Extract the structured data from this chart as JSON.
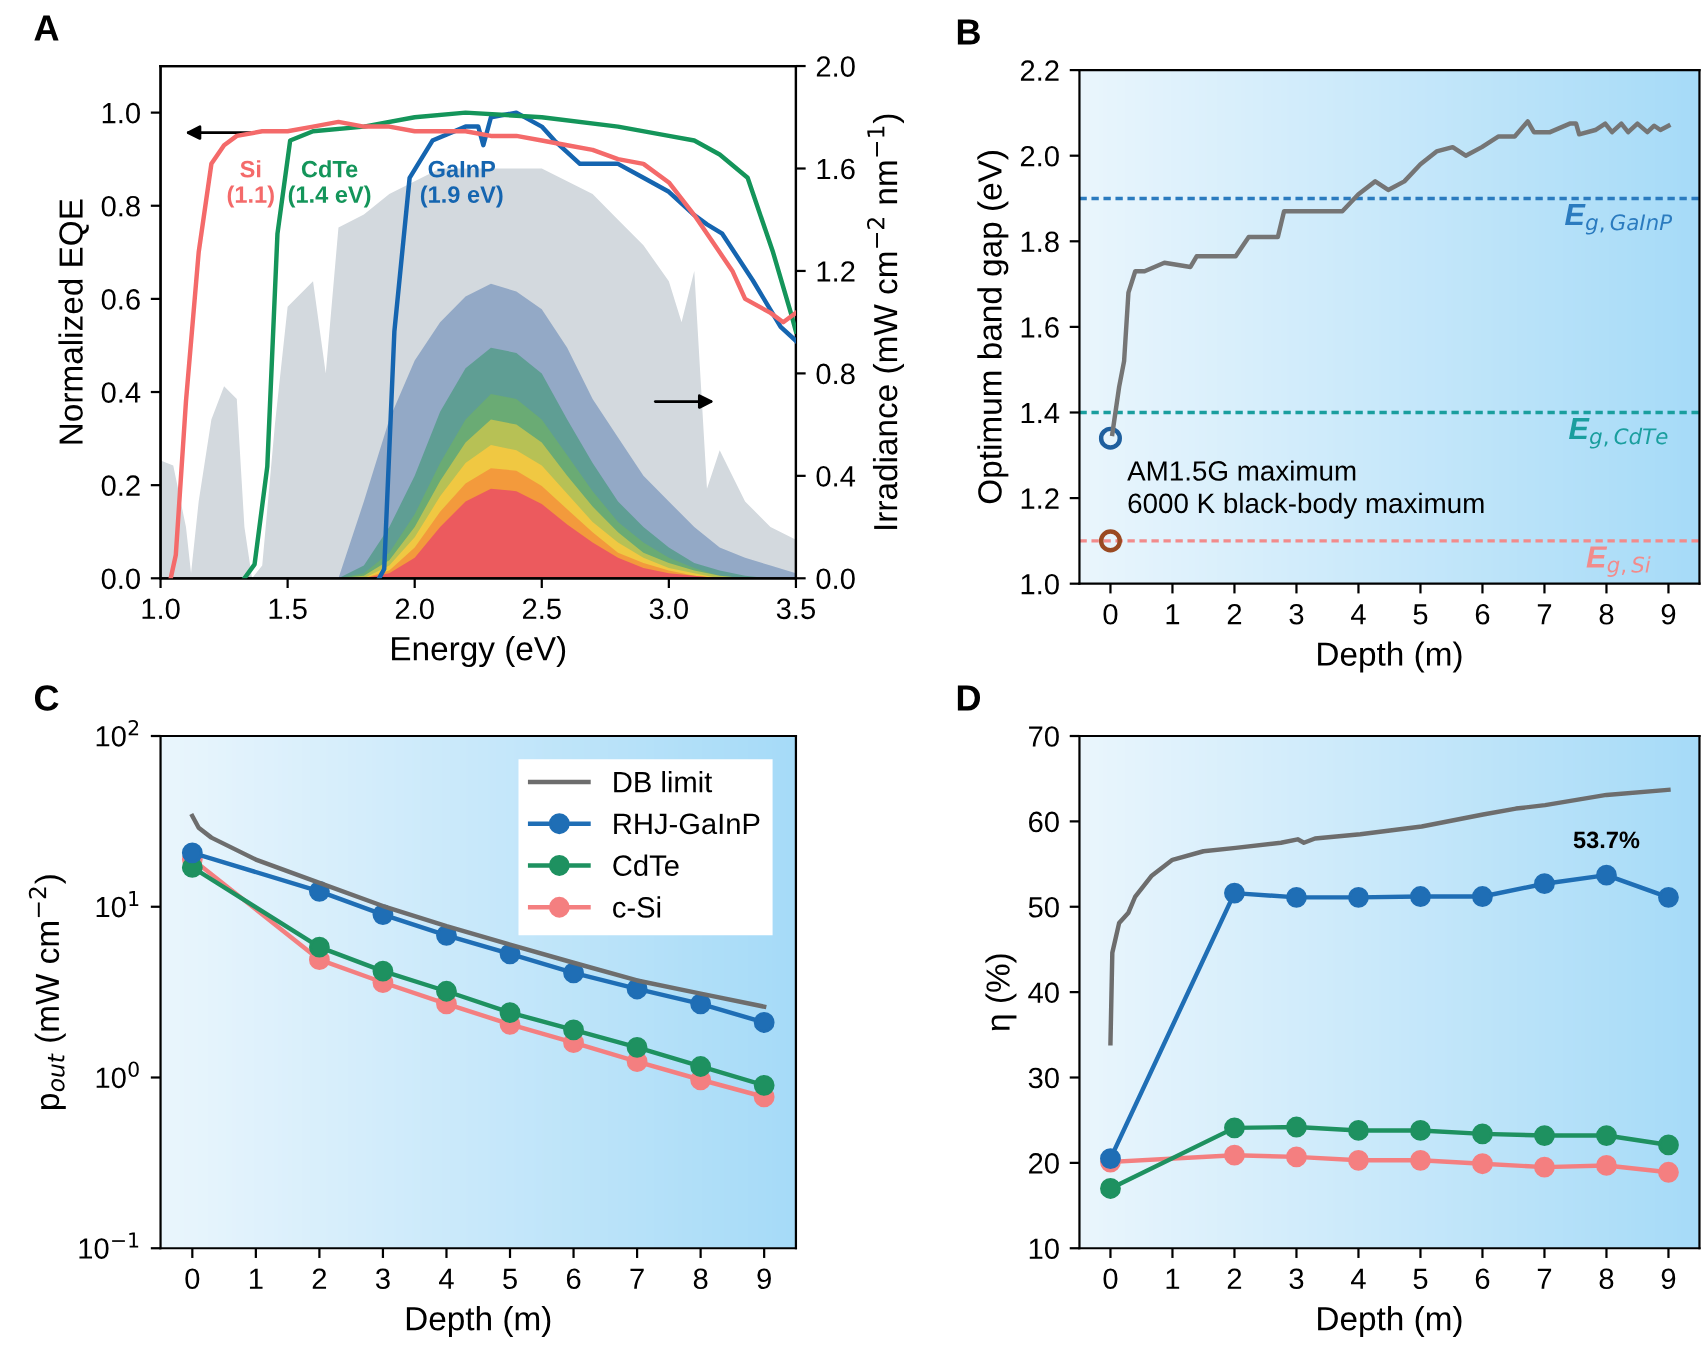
{
  "chart_data": [
    {
      "type": "line",
      "title": "A",
      "xlabel": "Energy (eV)",
      "ylabel": "Normalized EQE",
      "y2label": "Irradiance (mW cm$^{−2}$ nm$^{−1}$)",
      "xlim": [
        1.0,
        3.5
      ],
      "xticks": [
        {
          "value": 1,
          "label": "1.0"
        },
        1.5,
        {
          "value": 2,
          "label": "2.0"
        },
        2.5,
        {
          "value": 3,
          "label": "3.0"
        },
        3.5
      ],
      "ylim": [
        0.0,
        1.1
      ],
      "yticks": [
        {
          "value": 0,
          "label": "0.0"
        },
        0.2,
        0.4,
        0.6,
        0.8,
        {
          "value": 1,
          "label": "1.0"
        }
      ],
      "y2lim": [
        0.0,
        2.0
      ],
      "y2ticks": [
        {
          "value": 0,
          "label": "0.0"
        },
        0.4,
        0.8,
        1.2,
        1.6,
        {
          "value": 2,
          "label": "2.0"
        }
      ],
      "series": [
        {
          "type": "area",
          "axis": "y2",
          "color": "#d3d9de",
          "x": [
            1.0,
            1.05,
            1.1,
            1.12,
            1.15,
            1.2,
            1.25,
            1.3,
            1.33,
            1.36,
            1.4,
            1.45,
            1.5,
            1.6,
            1.65,
            1.7,
            1.8,
            1.9,
            2.0,
            2.1,
            2.2,
            2.3,
            2.4,
            2.5,
            2.6,
            2.7,
            2.8,
            2.9,
            3.0,
            3.05,
            3.1,
            3.15,
            3.2,
            3.3,
            3.4,
            3.5
          ],
          "values": [
            0.46,
            0.44,
            0.2,
            0.02,
            0.3,
            0.62,
            0.75,
            0.7,
            0.2,
            0.0,
            0.05,
            0.6,
            1.06,
            1.16,
            0.8,
            1.37,
            1.42,
            1.5,
            1.55,
            1.6,
            1.6,
            1.6,
            1.6,
            1.6,
            1.55,
            1.5,
            1.4,
            1.3,
            1.16,
            1.0,
            1.2,
            0.35,
            0.5,
            0.3,
            0.2,
            0.15
          ]
        },
        {
          "type": "area",
          "axis": "y2",
          "color": "#93a9c6",
          "x": [
            1.7,
            1.8,
            1.9,
            2.0,
            2.1,
            2.2,
            2.3,
            2.4,
            2.5,
            2.6,
            2.7,
            2.8,
            2.9,
            3.0,
            3.1,
            3.2,
            3.3,
            3.4,
            3.5
          ],
          "values": [
            0,
            0.3,
            0.62,
            0.85,
            1.0,
            1.1,
            1.15,
            1.12,
            1.05,
            0.9,
            0.7,
            0.55,
            0.4,
            0.3,
            0.2,
            0.12,
            0.08,
            0.05,
            0.02
          ]
        },
        {
          "type": "area",
          "axis": "y2",
          "color": "#5f9e94",
          "x": [
            1.7,
            1.8,
            1.9,
            2.0,
            2.1,
            2.2,
            2.3,
            2.4,
            2.5,
            2.6,
            2.7,
            2.8,
            2.9,
            3.0,
            3.1,
            3.2,
            3.3,
            3.4,
            3.5
          ],
          "values": [
            0,
            0.05,
            0.2,
            0.4,
            0.65,
            0.82,
            0.9,
            0.88,
            0.8,
            0.62,
            0.45,
            0.3,
            0.2,
            0.12,
            0.06,
            0.03,
            0.01,
            0,
            0
          ]
        },
        {
          "type": "area",
          "axis": "y2",
          "color": "#6aab74",
          "x": [
            1.7,
            1.8,
            1.9,
            2.0,
            2.1,
            2.2,
            2.3,
            2.4,
            2.5,
            2.6,
            2.7,
            2.8,
            2.9,
            3.0,
            3.1,
            3.2,
            3.3,
            3.4,
            3.5
          ],
          "values": [
            0,
            0.02,
            0.1,
            0.25,
            0.45,
            0.62,
            0.72,
            0.7,
            0.62,
            0.48,
            0.34,
            0.22,
            0.14,
            0.08,
            0.04,
            0.01,
            0,
            0,
            0
          ]
        },
        {
          "type": "area",
          "axis": "y2",
          "color": "#b7c155",
          "x": [
            1.7,
            1.8,
            1.9,
            2.0,
            2.1,
            2.2,
            2.3,
            2.4,
            2.5,
            2.6,
            2.7,
            2.8,
            2.9,
            3.0,
            3.1,
            3.2,
            3.3,
            3.4,
            3.5
          ],
          "values": [
            0,
            0.01,
            0.07,
            0.2,
            0.38,
            0.53,
            0.62,
            0.6,
            0.53,
            0.4,
            0.28,
            0.18,
            0.1,
            0.06,
            0.03,
            0.01,
            0,
            0,
            0
          ]
        },
        {
          "type": "area",
          "axis": "y2",
          "color": "#f0c842",
          "x": [
            1.7,
            1.8,
            1.9,
            2.0,
            2.1,
            2.2,
            2.3,
            2.4,
            2.5,
            2.6,
            2.7,
            2.8,
            2.9,
            3.0,
            3.1,
            3.2,
            3.3,
            3.4,
            3.5
          ],
          "values": [
            0,
            0,
            0.05,
            0.16,
            0.32,
            0.45,
            0.52,
            0.5,
            0.44,
            0.33,
            0.22,
            0.14,
            0.08,
            0.04,
            0.02,
            0,
            0,
            0,
            0
          ]
        },
        {
          "type": "area",
          "axis": "y2",
          "color": "#f39a3c",
          "x": [
            1.7,
            1.8,
            1.9,
            2.0,
            2.1,
            2.2,
            2.3,
            2.4,
            2.5,
            2.6,
            2.7,
            2.8,
            2.9,
            3.0,
            3.1,
            3.2,
            3.3,
            3.4,
            3.5
          ],
          "values": [
            0,
            0,
            0.03,
            0.12,
            0.26,
            0.37,
            0.43,
            0.42,
            0.36,
            0.27,
            0.18,
            0.1,
            0.06,
            0.03,
            0.01,
            0,
            0,
            0,
            0
          ]
        },
        {
          "type": "area",
          "axis": "y2",
          "color": "#ec5a5e",
          "x": [
            1.7,
            1.8,
            1.9,
            2.0,
            2.1,
            2.2,
            2.3,
            2.4,
            2.5,
            2.6,
            2.7,
            2.8,
            2.9,
            3.0,
            3.1,
            3.2,
            3.3,
            3.4,
            3.5
          ],
          "values": [
            0,
            0,
            0.02,
            0.08,
            0.2,
            0.3,
            0.35,
            0.34,
            0.29,
            0.21,
            0.14,
            0.08,
            0.04,
            0.02,
            0.01,
            0,
            0,
            0,
            0
          ]
        },
        {
          "type": "line",
          "name": "Si\n(1.1)",
          "color": "#f46a6a",
          "x": [
            1.04,
            1.06,
            1.1,
            1.15,
            1.2,
            1.25,
            1.3,
            1.4,
            1.5,
            1.6,
            1.7,
            1.8,
            1.9,
            2.0,
            2.1,
            2.2,
            2.3,
            2.4,
            2.5,
            2.6,
            2.7,
            2.8,
            2.9,
            3.0,
            3.1,
            3.2,
            3.25,
            3.3,
            3.4,
            3.45,
            3.5
          ],
          "values": [
            0,
            0.05,
            0.38,
            0.7,
            0.89,
            0.93,
            0.95,
            0.96,
            0.96,
            0.97,
            0.98,
            0.97,
            0.97,
            0.96,
            0.96,
            0.96,
            0.95,
            0.95,
            0.94,
            0.93,
            0.92,
            0.9,
            0.89,
            0.85,
            0.78,
            0.7,
            0.66,
            0.6,
            0.57,
            0.55,
            0.57
          ]
        },
        {
          "type": "line",
          "name": "CdTe\n(1.4 eV)",
          "color": "#14955a",
          "x": [
            1.33,
            1.37,
            1.42,
            1.46,
            1.51,
            1.6,
            1.8,
            2.0,
            2.2,
            2.5,
            2.8,
            3.0,
            3.1,
            3.2,
            3.31,
            3.41,
            3.48,
            3.5
          ],
          "values": [
            0,
            0.03,
            0.24,
            0.74,
            0.94,
            0.96,
            0.97,
            0.99,
            1.0,
            0.99,
            0.97,
            0.95,
            0.94,
            0.91,
            0.86,
            0.7,
            0.57,
            0.53
          ]
        },
        {
          "type": "line",
          "name": "GaInP\n(1.9 eV)",
          "color": "#1565b0",
          "x": [
            1.86,
            1.88,
            1.92,
            1.98,
            2.07,
            2.2,
            2.25,
            2.27,
            2.3,
            2.4,
            2.5,
            2.55,
            2.65,
            2.8,
            2.9,
            3.0,
            3.1,
            3.15,
            3.21,
            3.33,
            3.44,
            3.5
          ],
          "values": [
            0,
            0.02,
            0.53,
            0.86,
            0.94,
            0.97,
            0.97,
            0.93,
            0.99,
            1.0,
            0.97,
            0.94,
            0.89,
            0.89,
            0.86,
            0.83,
            0.78,
            0.76,
            0.74,
            0.64,
            0.54,
            0.51
          ]
        }
      ]
    },
    {
      "type": "line",
      "title": "B",
      "xlabel": "Depth (m)",
      "ylabel": "Optimum band gap (eV)",
      "xlim": [
        -0.5,
        9.5
      ],
      "xticks": [
        0,
        1,
        2,
        3,
        4,
        5,
        6,
        7,
        8,
        9
      ],
      "ylim": [
        1.0,
        2.2
      ],
      "yticks": [
        {
          "value": 1,
          "label": "1.0"
        },
        1.2,
        1.4,
        1.6,
        1.8,
        {
          "value": 2,
          "label": "2.0"
        },
        2.2
      ],
      "ref_lines": [
        {
          "axis": "y",
          "value": 1.9,
          "label": "E$_{g,GaInP}$",
          "color": "#2b7bbf",
          "line_style": "dashed"
        },
        {
          "axis": "y",
          "value": 1.4,
          "label": "E$_{g,CdTe}$",
          "color": "#1a9e9e",
          "line_style": "dashed"
        },
        {
          "axis": "y",
          "value": 1.1,
          "label": "E$_{g,Si}$",
          "color": "#f28b8b",
          "line_style": "dashed"
        }
      ],
      "annotations": [
        {
          "text": "AM1.5G maximum",
          "x": 0,
          "y": 1.34
        },
        {
          "text": "6000 K black-body maximum",
          "x": 0,
          "y": 1.1
        }
      ],
      "series": [
        {
          "type": "line",
          "color": "#757575",
          "x": [
            0.03,
            0.14,
            0.22,
            0.29,
            0.4,
            0.55,
            0.87,
            1.29,
            1.39,
            2.02,
            2.23,
            2.7,
            2.8,
            3.17,
            3.74,
            4.0,
            4.27,
            4.48,
            4.74,
            5.0,
            5.26,
            5.52,
            5.73,
            5.99,
            6.26,
            6.52,
            6.73,
            6.83,
            7.09,
            7.41,
            7.51,
            7.56,
            7.82,
            7.98,
            8.09,
            8.24,
            8.35,
            8.5,
            8.66,
            8.77,
            8.87,
            9.0
          ],
          "values": [
            1.35,
            1.46,
            1.52,
            1.68,
            1.73,
            1.73,
            1.75,
            1.74,
            1.765,
            1.765,
            1.81,
            1.81,
            1.87,
            1.87,
            1.87,
            1.91,
            1.94,
            1.92,
            1.94,
            1.98,
            2.01,
            2.02,
            2.0,
            2.02,
            2.045,
            2.045,
            2.08,
            2.055,
            2.055,
            2.075,
            2.075,
            2.05,
            2.06,
            2.075,
            2.055,
            2.075,
            2.055,
            2.075,
            2.055,
            2.07,
            2.06,
            2.07
          ]
        },
        {
          "type": "scatter",
          "marker": "circle",
          "color": "#1f5f9e",
          "x": [
            0
          ],
          "values": [
            1.34
          ]
        },
        {
          "type": "scatter",
          "marker": "circle",
          "color": "#9a4a22",
          "x": [
            0
          ],
          "values": [
            1.1
          ]
        }
      ]
    },
    {
      "type": "line",
      "title": "C",
      "xlabel": "Depth (m)",
      "ylabel": "p$_{out}$ (mW cm$^{−2}$)",
      "log": "y",
      "xlim": [
        -0.5,
        9.5
      ],
      "xticks": [
        0,
        1,
        2,
        3,
        4,
        5,
        6,
        7,
        8,
        9
      ],
      "ylim": [
        0.1,
        100
      ],
      "yticks": [
        {
          "value": 0.1,
          "label": "10$^{−1}$"
        },
        {
          "value": 1,
          "label": "10$^{0}$"
        },
        {
          "value": 10,
          "label": "10$^{1}$"
        },
        {
          "value": 100,
          "label": "10$^{2}$"
        }
      ],
      "legend": "top right",
      "marker": "circle",
      "x": [
        0,
        2,
        3,
        4,
        5,
        6,
        7,
        8,
        9
      ],
      "series": [
        {
          "name": "DB limit",
          "color": "#6d6d6d",
          "marker": "none",
          "x": [
            0,
            0.1,
            0.3,
            1,
            2,
            3,
            4,
            5,
            6,
            7,
            8,
            9
          ],
          "values": [
            34,
            29,
            25.4,
            18.9,
            13.8,
            10.1,
            7.7,
            6.0,
            4.7,
            3.7,
            3.1,
            2.6
          ]
        },
        {
          "name": "RHJ-GaInP",
          "color": "#1f6eb5",
          "values": [
            20.7,
            12.3,
            9.0,
            6.8,
            5.3,
            4.1,
            3.3,
            2.7,
            2.1
          ]
        },
        {
          "name": "CdTe",
          "color": "#1e9160",
          "values": [
            17,
            5.8,
            4.2,
            3.2,
            2.4,
            1.9,
            1.5,
            1.16,
            0.9
          ]
        },
        {
          "name": "c-Si",
          "color": "#f47f80",
          "values": [
            19,
            4.9,
            3.6,
            2.7,
            2.05,
            1.6,
            1.24,
            0.97,
            0.77
          ]
        }
      ]
    },
    {
      "type": "line",
      "title": "D",
      "xlabel": "Depth (m)",
      "ylabel": "η (%)",
      "xlim": [
        -0.5,
        9.5
      ],
      "xticks": [
        0,
        1,
        2,
        3,
        4,
        5,
        6,
        7,
        8,
        9
      ],
      "ylim": [
        10,
        70
      ],
      "yticks": [
        10,
        20,
        30,
        40,
        50,
        60,
        70
      ],
      "marker": "circle",
      "x": [
        0,
        2,
        3,
        4,
        5,
        6,
        7,
        8,
        9
      ],
      "series": [
        {
          "color": "#6d6d6d",
          "marker": "none",
          "x": [
            0,
            0.03,
            0.14,
            0.29,
            0.4,
            0.66,
            1.0,
            1.5,
            2.02,
            2.75,
            3.02,
            3.12,
            3.3,
            4.03,
            5.02,
            6.01,
            6.54,
            7.01,
            8.0,
            9.0
          ],
          "values": [
            34.0,
            44.6,
            48.1,
            49.3,
            51.2,
            53.6,
            55.5,
            56.5,
            56.9,
            57.5,
            57.9,
            57.5,
            58.0,
            58.5,
            59.4,
            60.8,
            61.5,
            61.9,
            63.1,
            63.7
          ]
        },
        {
          "color": "#1f6eb5",
          "values": [
            20.5,
            51.6,
            51.1,
            51.1,
            51.2,
            51.2,
            52.7,
            53.7,
            51.1
          ],
          "value_labels": [
            null,
            null,
            null,
            null,
            null,
            null,
            null,
            "53.7%",
            null
          ]
        },
        {
          "color": "#1e9160",
          "values": [
            17.0,
            24.1,
            24.2,
            23.8,
            23.8,
            23.4,
            23.2,
            23.2,
            22.1
          ]
        },
        {
          "color": "#f47f80",
          "values": [
            20.1,
            20.9,
            20.7,
            20.3,
            20.3,
            19.9,
            19.5,
            19.7,
            18.9
          ]
        }
      ]
    }
  ]
}
